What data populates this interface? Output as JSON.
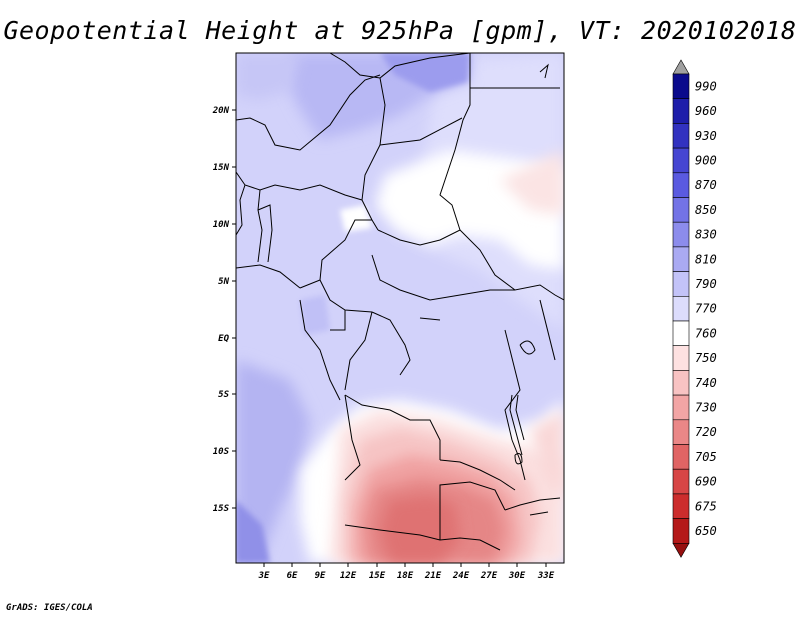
{
  "title": "Geopotential Height at 925hPa [gpm], VT: 2020102018",
  "credit": "GrADS: IGES/COLA",
  "map": {
    "lat_labels": [
      "20N",
      "15N",
      "10N",
      "5N",
      "EQ",
      "5S",
      "10S",
      "15S"
    ],
    "lon_labels": [
      "3E",
      "6E",
      "9E",
      "12E",
      "15E",
      "18E",
      "21E",
      "24E",
      "27E",
      "30E",
      "33E"
    ]
  },
  "colorbar": {
    "levels": [
      "990",
      "960",
      "930",
      "900",
      "870",
      "850",
      "830",
      "810",
      "790",
      "770",
      "760",
      "750",
      "740",
      "730",
      "720",
      "705",
      "690",
      "675",
      "650"
    ],
    "colors": [
      "#0a0a8c",
      "#1e1eaa",
      "#3232c0",
      "#4646d2",
      "#5a5ae0",
      "#7373e6",
      "#8c8cec",
      "#aaaaf2",
      "#c3c3f8",
      "#dcdcfc",
      "#ffffff",
      "#fde1e1",
      "#f8c3c3",
      "#f2a5a5",
      "#ea8787",
      "#e06464",
      "#d74646",
      "#cc2d2d",
      "#b41919"
    ],
    "top_arrow_color": "#a0a0a0",
    "bottom_arrow_color": "#961010"
  }
}
